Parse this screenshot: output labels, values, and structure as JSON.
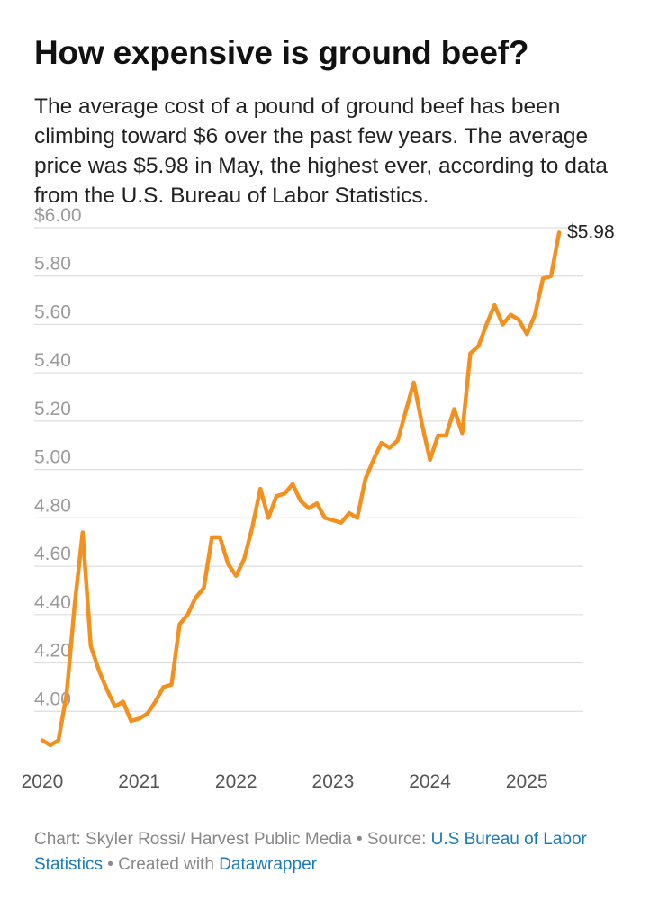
{
  "title": "How expensive is ground beef?",
  "subtitle": "The average cost of a pound of ground beef has been climbing toward $6 over the past few years. The average price was $5.98 in May, the highest ever, according to data from the U.S. Bureau of Labor Statistics.",
  "footer": {
    "chart_credit": "Chart: Skyler Rossi/ Harvest Public Media • Source: ",
    "source_link": "U.S Bureau of Labor Statistics",
    "created_with": " • Created with ",
    "tool_link": "Datawrapper"
  },
  "colors": {
    "line": "#f4901e",
    "grid": "#dddddd",
    "axis_text": "#9a9a9a",
    "link": "#1b7ab8"
  },
  "chart_data": {
    "type": "line",
    "title": "",
    "xlabel": "",
    "ylabel": "",
    "ylim": [
      3.8,
      6.0
    ],
    "xlim": [
      "2019-12",
      "2025-08"
    ],
    "y_ticks": [
      4.0,
      4.2,
      4.4,
      4.6,
      4.8,
      5.0,
      5.2,
      5.4,
      5.6,
      5.8,
      6.0
    ],
    "y_tick_labels": [
      "4.00",
      "4.20",
      "4.40",
      "4.60",
      "4.80",
      "5.00",
      "5.20",
      "5.40",
      "5.60",
      "5.80",
      "$6.00"
    ],
    "x_ticks": [
      "2020-01",
      "2021-01",
      "2022-01",
      "2023-01",
      "2024-01",
      "2025-01"
    ],
    "x_tick_labels": [
      "2020",
      "2021",
      "2022",
      "2023",
      "2024",
      "2025"
    ],
    "grid": true,
    "end_label": "$5.98",
    "series": [
      {
        "x": [
          "2020-01",
          "2020-02",
          "2020-03",
          "2020-04",
          "2020-05",
          "2020-06",
          "2020-07",
          "2020-08",
          "2020-09",
          "2020-10",
          "2020-11",
          "2020-12",
          "2021-01",
          "2021-02",
          "2021-03",
          "2021-04",
          "2021-05",
          "2021-06",
          "2021-07",
          "2021-08",
          "2021-09",
          "2021-10",
          "2021-11",
          "2021-12",
          "2022-01",
          "2022-02",
          "2022-03",
          "2022-04",
          "2022-05",
          "2022-06",
          "2022-07",
          "2022-08",
          "2022-09",
          "2022-10",
          "2022-11",
          "2022-12",
          "2023-01",
          "2023-02",
          "2023-03",
          "2023-04",
          "2023-05",
          "2023-06",
          "2023-07",
          "2023-08",
          "2023-09",
          "2023-10",
          "2023-11",
          "2023-12",
          "2024-01",
          "2024-02",
          "2024-03",
          "2024-04",
          "2024-05",
          "2024-06",
          "2024-07",
          "2024-08",
          "2024-09",
          "2024-10",
          "2024-11",
          "2024-12",
          "2025-01",
          "2025-02",
          "2025-03",
          "2025-04",
          "2025-05"
        ],
        "values": [
          3.88,
          3.86,
          3.88,
          4.07,
          4.44,
          4.74,
          4.27,
          4.17,
          4.09,
          4.02,
          4.04,
          3.96,
          3.97,
          3.99,
          4.04,
          4.1,
          4.11,
          4.36,
          4.4,
          4.47,
          4.51,
          4.72,
          4.72,
          4.61,
          4.56,
          4.63,
          4.76,
          4.92,
          4.8,
          4.89,
          4.9,
          4.94,
          4.87,
          4.84,
          4.86,
          4.8,
          4.79,
          4.78,
          4.82,
          4.8,
          4.96,
          5.04,
          5.11,
          5.09,
          5.12,
          5.24,
          5.36,
          5.19,
          5.04,
          5.14,
          5.14,
          5.25,
          5.15,
          5.48,
          5.51,
          5.6,
          5.68,
          5.6,
          5.64,
          5.62,
          5.56,
          5.64,
          5.79,
          5.8,
          5.98
        ]
      }
    ]
  }
}
